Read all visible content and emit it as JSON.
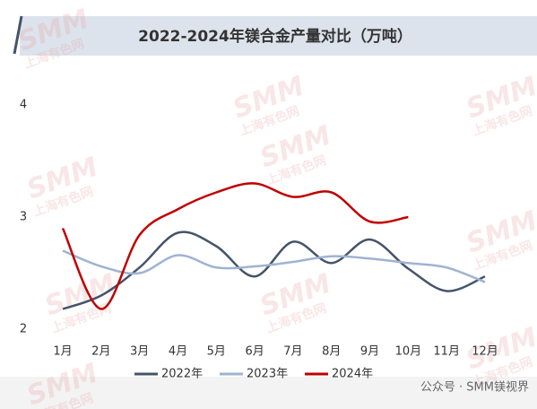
{
  "chart_data": {
    "type": "line",
    "title": "2022-2024年镁合金产量对比（万吨）",
    "categories": [
      "1月",
      "2月",
      "3月",
      "4月",
      "5月",
      "6月",
      "7月",
      "8月",
      "9月",
      "10月",
      "11月",
      "12月"
    ],
    "series": [
      {
        "name": "2022年",
        "color": "#44546a",
        "values": [
          2.18,
          2.3,
          2.55,
          2.86,
          2.74,
          2.47,
          2.78,
          2.59,
          2.8,
          2.54,
          2.34,
          2.47
        ]
      },
      {
        "name": "2023年",
        "color": "#9fb3d1",
        "values": [
          2.7,
          2.56,
          2.5,
          2.66,
          2.55,
          2.56,
          2.6,
          2.65,
          2.63,
          2.59,
          2.55,
          2.42
        ]
      },
      {
        "name": "2024年",
        "color": "#c00000",
        "values": [
          2.9,
          2.18,
          2.84,
          3.07,
          3.22,
          3.3,
          3.18,
          3.22,
          2.96,
          3.0,
          null,
          null
        ]
      }
    ],
    "ylim": [
      2,
      4
    ],
    "yticks": [
      2,
      3,
      4
    ],
    "grid": false,
    "legend": "bottom",
    "watermark": [
      "SMM",
      "上海有色网"
    ],
    "footer": "公众号 · SMM镁视界"
  }
}
